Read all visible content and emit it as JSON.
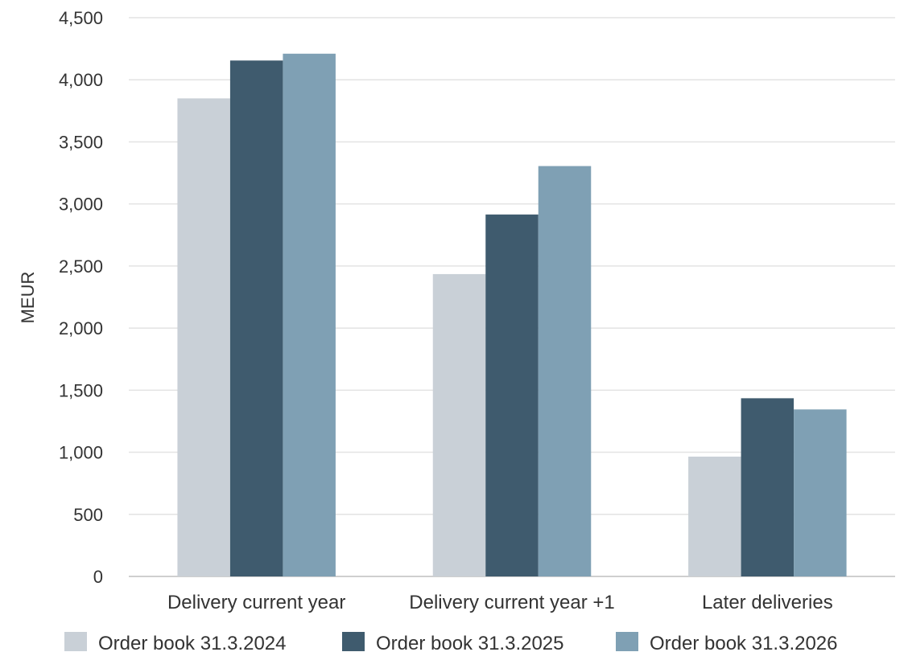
{
  "chart_data": {
    "type": "bar",
    "title": "",
    "xlabel": "",
    "ylabel": "MEUR",
    "ylim": [
      0,
      4500
    ],
    "yticks": [
      0,
      500,
      1000,
      1500,
      2000,
      2500,
      3000,
      3500,
      4000,
      4500
    ],
    "ytick_labels": [
      "0",
      "500",
      "1,000",
      "1,500",
      "2,000",
      "2,500",
      "3,000",
      "3,500",
      "4,000",
      "4,500"
    ],
    "grid": true,
    "legend_position": "bottom",
    "categories": [
      "Delivery current year",
      "Delivery current year +1",
      "Later deliveries"
    ],
    "series": [
      {
        "name": "Order book 31.3.2024",
        "color": "#c9d0d7",
        "values": [
          3850,
          2435,
          965
        ]
      },
      {
        "name": "Order book 31.3.2025",
        "color": "#3f5b6e",
        "values": [
          4155,
          2915,
          1435
        ]
      },
      {
        "name": "Order book 31.3.2026",
        "color": "#7fa0b4",
        "values": [
          4210,
          3305,
          1345
        ]
      }
    ]
  }
}
